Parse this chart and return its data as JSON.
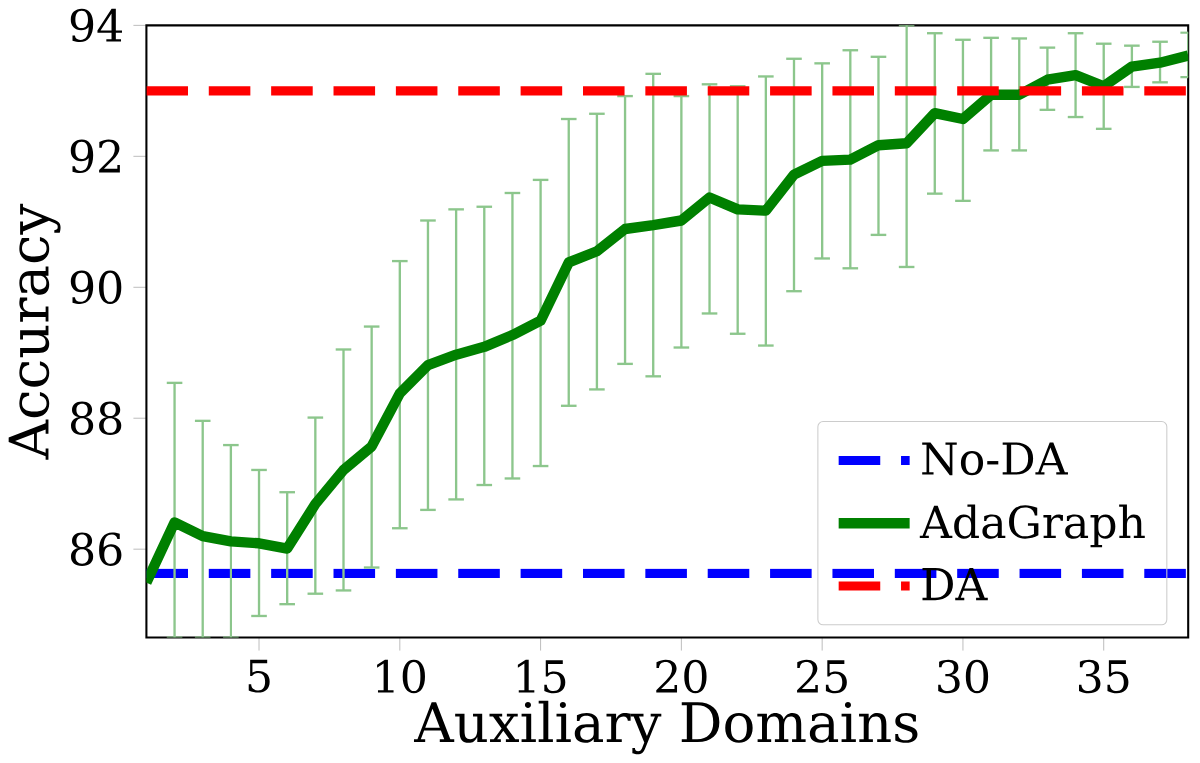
{
  "chart_data": {
    "type": "line",
    "xlabel": "Auxiliary Domains",
    "ylabel": "Accuracy",
    "x": [
      1,
      2,
      3,
      4,
      5,
      6,
      7,
      8,
      9,
      10,
      11,
      12,
      13,
      14,
      15,
      16,
      17,
      18,
      19,
      20,
      21,
      22,
      23,
      24,
      25,
      26,
      27,
      28,
      29,
      30,
      31,
      32,
      33,
      34,
      35,
      36,
      37,
      38
    ],
    "series": [
      {
        "name": "AdaGraph",
        "color": "#008000",
        "values": [
          85.49,
          86.41,
          86.2,
          86.12,
          86.09,
          86.01,
          86.69,
          87.21,
          87.57,
          88.38,
          88.81,
          88.97,
          89.09,
          89.27,
          89.49,
          90.38,
          90.55,
          90.89,
          90.95,
          91.02,
          91.37,
          91.19,
          91.17,
          91.72,
          91.93,
          91.95,
          92.17,
          92.2,
          92.66,
          92.57,
          92.94,
          92.94,
          93.17,
          93.24,
          93.07,
          93.37,
          93.43,
          93.54
        ],
        "errors": [
          null,
          [
            84.65,
            88.54
          ],
          [
            84.65,
            87.96
          ],
          [
            84.65,
            87.59
          ],
          [
            84.98,
            87.21
          ],
          [
            85.16,
            86.87
          ],
          [
            85.32,
            88.01
          ],
          [
            85.37,
            89.05
          ],
          [
            85.72,
            89.4
          ],
          [
            86.32,
            90.4
          ],
          [
            86.6,
            91.02
          ],
          [
            86.76,
            91.19
          ],
          [
            86.98,
            91.23
          ],
          [
            87.08,
            91.44
          ],
          [
            87.27,
            91.64
          ],
          [
            88.19,
            92.57
          ],
          [
            88.44,
            92.65
          ],
          [
            88.83,
            92.92
          ],
          [
            88.64,
            93.26
          ],
          [
            89.08,
            92.92
          ],
          [
            89.6,
            93.1
          ],
          [
            89.29,
            93.07
          ],
          [
            89.11,
            93.22
          ],
          [
            89.94,
            93.49
          ],
          [
            90.44,
            93.42
          ],
          [
            90.29,
            93.62
          ],
          [
            90.8,
            93.52
          ],
          [
            90.31,
            94.0
          ],
          [
            91.43,
            93.88
          ],
          [
            91.32,
            93.78
          ],
          [
            92.09,
            93.81
          ],
          [
            92.09,
            93.8
          ],
          [
            92.71,
            93.66
          ],
          [
            92.6,
            93.88
          ],
          [
            92.42,
            93.72
          ],
          [
            93.06,
            93.69
          ],
          [
            93.13,
            93.75
          ],
          [
            93.21,
            93.89
          ]
        ]
      }
    ],
    "ref_lines": [
      {
        "axis": "y",
        "value": 85.63,
        "label": "No-DA",
        "color": "#0000ff",
        "line_style": "dashed"
      },
      {
        "axis": "y",
        "value": 93.0,
        "label": "DA",
        "color": "#ff0000",
        "line_style": "dashed"
      }
    ],
    "xlim": [
      1,
      38
    ],
    "ylim": [
      84.65,
      94
    ],
    "xticks": [
      5,
      10,
      15,
      20,
      25,
      30,
      35
    ],
    "yticks": [
      86,
      88,
      90,
      92,
      94
    ],
    "grid": false,
    "legend": "bottom right",
    "line_style": "solid",
    "marker": "none"
  }
}
